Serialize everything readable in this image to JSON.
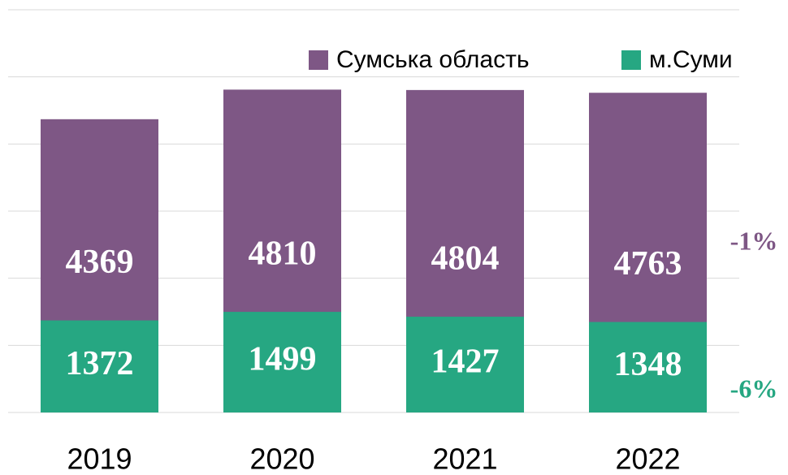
{
  "chart_data": {
    "type": "bar",
    "categories": [
      "2019",
      "2020",
      "2021",
      "2022"
    ],
    "series": [
      {
        "name": "Сумська область",
        "color": "#7e5785",
        "values": [
          4369,
          4810,
          4804,
          4763
        ]
      },
      {
        "name": "м.Суми",
        "color": "#26a782",
        "values": [
          1372,
          1499,
          1427,
          1348
        ]
      }
    ],
    "ylim": [
      0,
      6000
    ],
    "yticks": [
      0,
      1000,
      2000,
      3000,
      4000,
      5000,
      6000
    ],
    "grid": true,
    "annotations": [
      {
        "text": "-1%",
        "color": "#7e5785"
      },
      {
        "text": "-6%",
        "color": "#26a782"
      }
    ]
  }
}
